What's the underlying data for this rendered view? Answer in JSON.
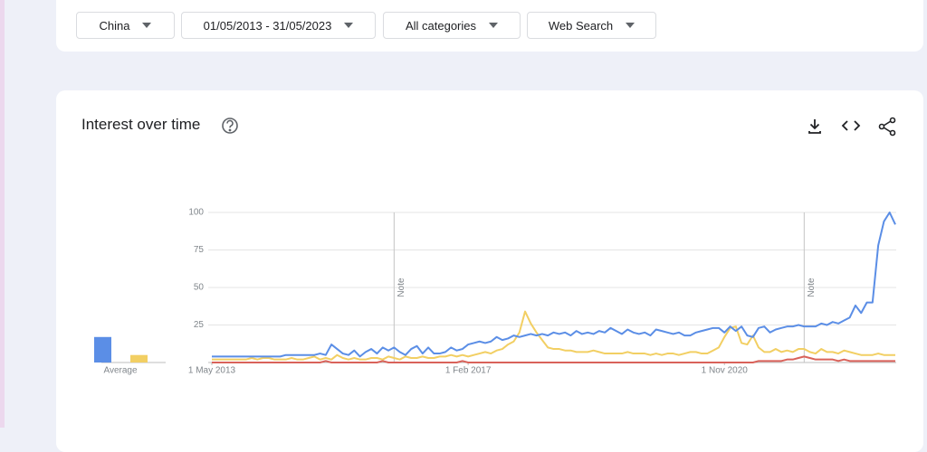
{
  "filters": [
    "China",
    "01/05/2013 - 31/05/2023",
    "All categories",
    "Web Search"
  ],
  "card_title": "Interest over time",
  "chart_data": {
    "type": "line",
    "xlim": [
      0,
      120
    ],
    "xticks": [
      {
        "value": 0,
        "label": "1 May 2013"
      },
      {
        "value": 45,
        "label": "1 Feb 2017"
      },
      {
        "value": 90,
        "label": "1 Nov 2020"
      }
    ],
    "ylim": [
      0,
      100
    ],
    "yticks": [
      25,
      50,
      75,
      100
    ],
    "grid": true,
    "annotations": [
      {
        "x": 32,
        "label": "Note"
      },
      {
        "x": 104,
        "label": "Note"
      }
    ],
    "series": [
      {
        "color": "#5b8ee6",
        "values": [
          4,
          4,
          4,
          4,
          4,
          4,
          4,
          4,
          4,
          4,
          4,
          4,
          4,
          5,
          5,
          5,
          5,
          5,
          5,
          6,
          5,
          12,
          9,
          6,
          5,
          8,
          4,
          7,
          9,
          6,
          10,
          8,
          10,
          7,
          5,
          9,
          11,
          6,
          10,
          6,
          6,
          7,
          10,
          8,
          9,
          12,
          13,
          14,
          13,
          14,
          17,
          15,
          16,
          18,
          17,
          18,
          19,
          18,
          19,
          18,
          20,
          19,
          20,
          18,
          21,
          19,
          20,
          19,
          21,
          20,
          23,
          21,
          19,
          22,
          20,
          19,
          20,
          18,
          22,
          21,
          20,
          19,
          20,
          18,
          18,
          20,
          21,
          22,
          23,
          23,
          20,
          24,
          21,
          24,
          18,
          17,
          23,
          24,
          20,
          22,
          23,
          24,
          24,
          25,
          24,
          24,
          24,
          26,
          25,
          27,
          26,
          28,
          30,
          38,
          33,
          40,
          40,
          78,
          94,
          100,
          92
        ]
      },
      {
        "color": "#f2cf63",
        "values": [
          2,
          2,
          2,
          2,
          2,
          2,
          2,
          3,
          2,
          3,
          3,
          2,
          2,
          2,
          3,
          2,
          2,
          3,
          4,
          2,
          3,
          2,
          5,
          3,
          2,
          3,
          2,
          2,
          3,
          3,
          2,
          4,
          3,
          2,
          4,
          3,
          3,
          4,
          3,
          3,
          4,
          4,
          5,
          4,
          5,
          4,
          5,
          6,
          7,
          6,
          8,
          9,
          12,
          14,
          20,
          34,
          26,
          20,
          15,
          10,
          9,
          9,
          8,
          8,
          7,
          7,
          7,
          8,
          7,
          6,
          6,
          6,
          6,
          7,
          6,
          6,
          6,
          5,
          6,
          5,
          6,
          6,
          5,
          6,
          7,
          7,
          6,
          6,
          8,
          10,
          17,
          23,
          24,
          13,
          12,
          18,
          10,
          7,
          7,
          9,
          7,
          8,
          7,
          9,
          9,
          7,
          6,
          9,
          7,
          7,
          6,
          8,
          7,
          6,
          5,
          5,
          5,
          6,
          5,
          5,
          5
        ]
      },
      {
        "color": "#d9625a",
        "values": [
          0,
          0,
          0,
          0,
          0,
          0,
          0,
          0,
          0,
          0,
          0,
          0,
          0,
          0,
          0,
          0,
          0,
          0,
          0,
          0,
          1,
          0,
          0,
          0,
          0,
          0,
          0,
          0,
          0,
          0,
          1,
          0,
          0,
          0,
          0,
          0,
          0,
          0,
          0,
          0,
          0,
          0,
          0,
          0,
          1,
          0,
          0,
          0,
          0,
          0,
          0,
          0,
          0,
          0,
          0,
          0,
          0,
          0,
          0,
          0,
          0,
          0,
          0,
          0,
          0,
          0,
          0,
          0,
          0,
          0,
          0,
          0,
          0,
          0,
          0,
          0,
          0,
          0,
          0,
          0,
          0,
          0,
          0,
          0,
          0,
          0,
          0,
          0,
          0,
          0,
          0,
          0,
          0,
          0,
          0,
          0,
          1,
          1,
          1,
          1,
          1,
          2,
          2,
          3,
          4,
          3,
          2,
          2,
          2,
          2,
          1,
          2,
          1,
          1,
          1,
          1,
          1,
          1,
          1,
          1,
          1
        ]
      }
    ],
    "average": {
      "label": "Average",
      "values": [
        17,
        5
      ]
    }
  }
}
